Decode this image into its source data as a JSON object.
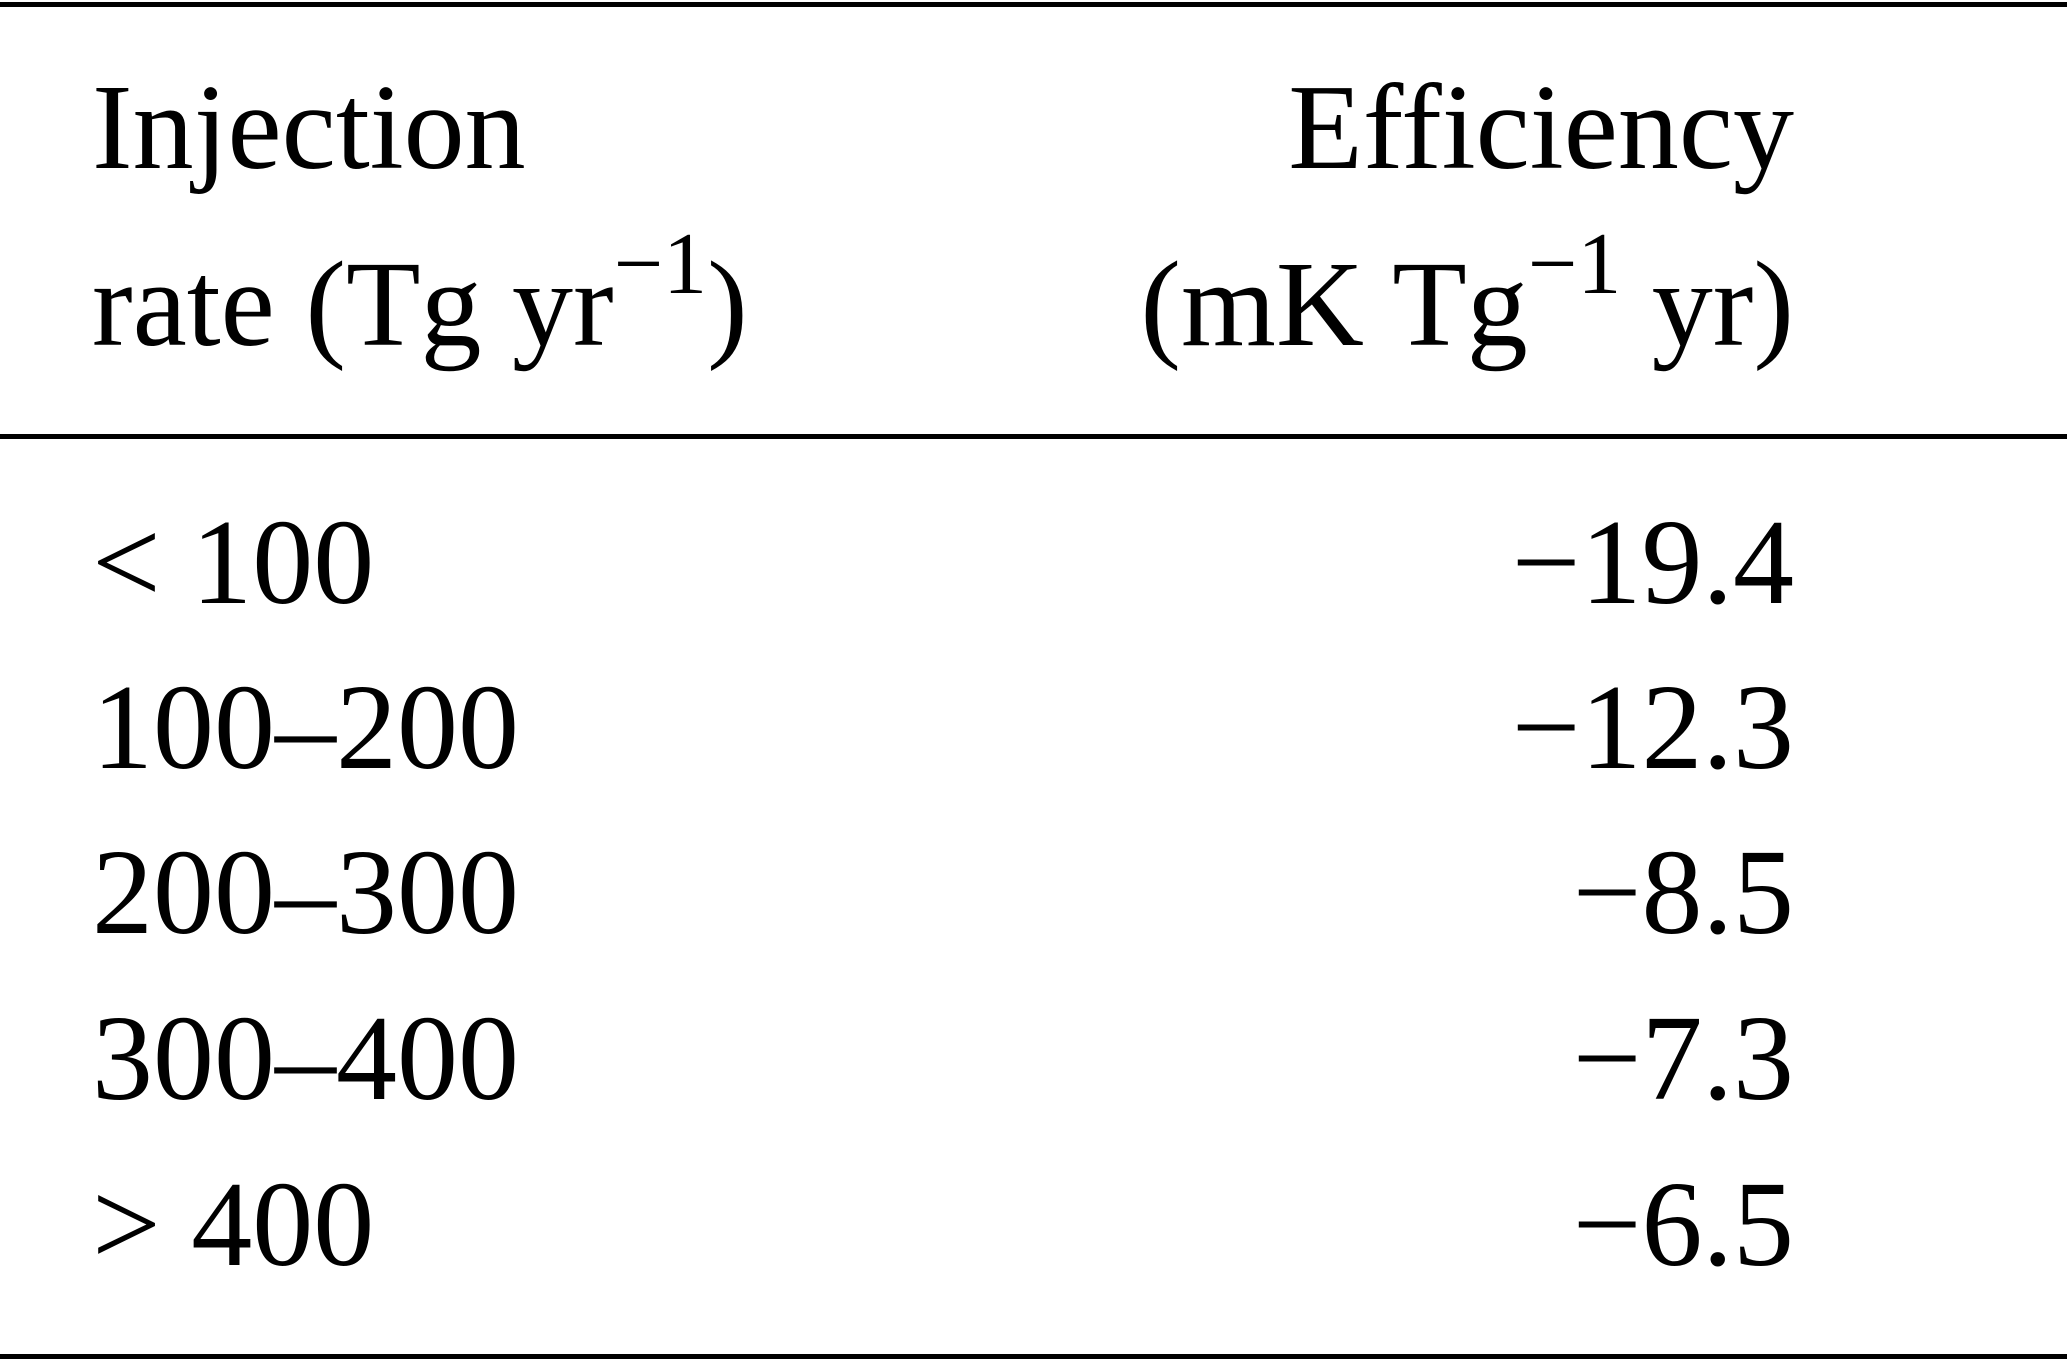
{
  "table": {
    "headers": [
      {
        "line1": "Injection",
        "line2_pre": "rate (Tg yr",
        "line2_sup": "−1",
        "line2_post": ")"
      },
      {
        "line1": "Efficiency",
        "line2_pre": "(mK Tg",
        "line2_sup": "−1",
        "line2_post": " yr)"
      }
    ],
    "rows": [
      {
        "rate": "< 100",
        "efficiency": "−19.4"
      },
      {
        "rate": "100–200",
        "efficiency": "−12.3"
      },
      {
        "rate": "200–300",
        "efficiency": "−8.5"
      },
      {
        "rate": "300–400",
        "efficiency": "−7.3"
      },
      {
        "rate": "> 400",
        "efficiency": "−6.5"
      }
    ]
  }
}
